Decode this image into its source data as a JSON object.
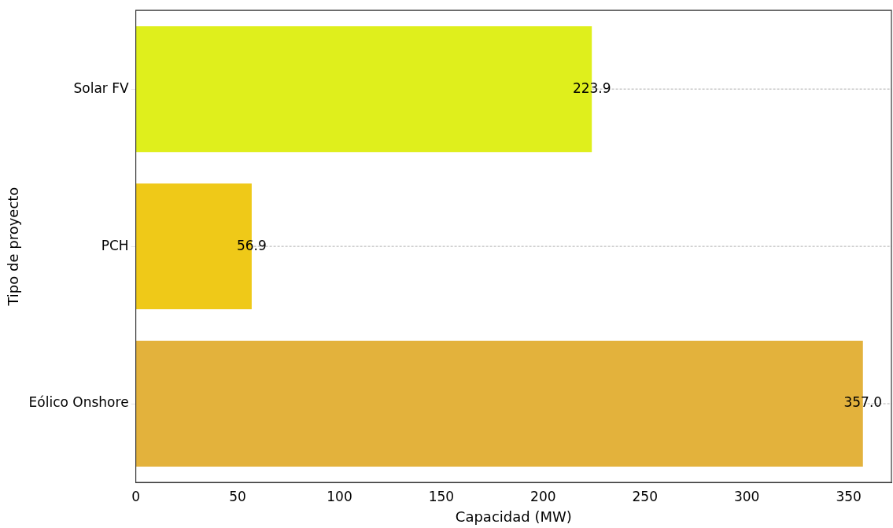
{
  "chart_data": {
    "type": "bar",
    "orientation": "horizontal",
    "xlabel": "Capacidad (MW)",
    "ylabel": "Tipo de proyecto",
    "categories": [
      "Solar FV",
      "PCH",
      "Eólico Onshore"
    ],
    "values": [
      223.9,
      56.9,
      357.0
    ],
    "colors": [
      "#dfef1c",
      "#efc918",
      "#e3b23c"
    ],
    "value_labels": [
      "223.9",
      "56.9",
      "357.0"
    ],
    "xlim": [
      0,
      371
    ],
    "xticks": [
      0,
      50,
      100,
      150,
      200,
      250,
      300,
      350
    ],
    "grid": "y"
  }
}
